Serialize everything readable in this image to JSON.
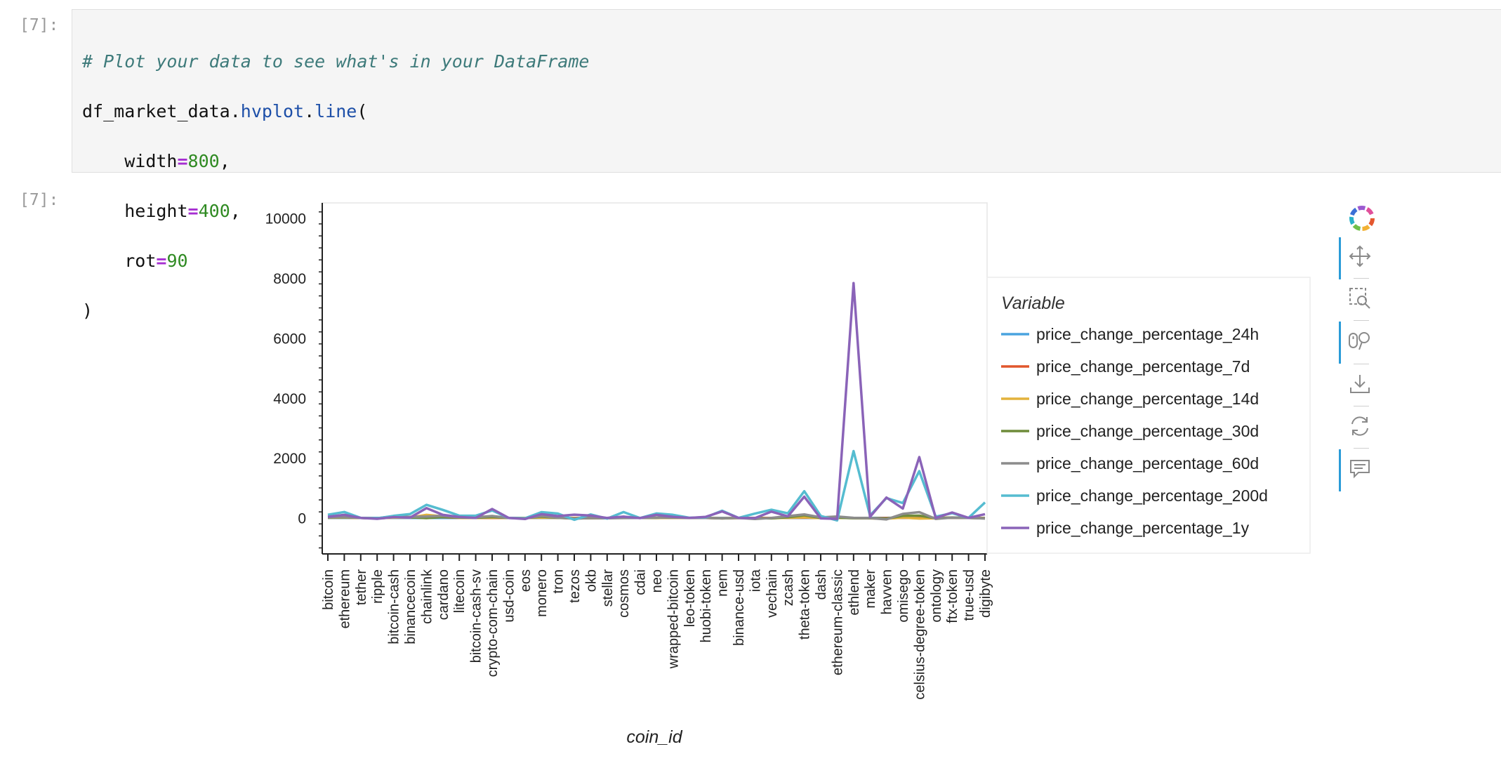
{
  "notebook": {
    "input_prompt": "[7]:",
    "output_prompt": "[7]:",
    "code": {
      "comment": "# Plot your data to see what's in your DataFrame",
      "object": "df_market_data.",
      "accessor": "hvplot",
      "dot": ".",
      "method": "line",
      "open_paren": "(",
      "arg1_name": "width",
      "arg1_value": "800",
      "arg2_name": "height",
      "arg2_value": "400",
      "arg3_name": "rot",
      "arg3_value": "90",
      "eq": "=",
      "comma": ",",
      "close_paren": ")"
    }
  },
  "toolbar": {
    "items": [
      {
        "name": "bokeh-logo-icon"
      },
      {
        "name": "pan-icon",
        "active": true
      },
      {
        "name": "box-zoom-icon",
        "active": false
      },
      {
        "name": "wheel-zoom-icon",
        "active": true
      },
      {
        "name": "save-icon",
        "active": false
      },
      {
        "name": "reset-icon",
        "active": false
      },
      {
        "name": "hover-icon",
        "active": true
      }
    ]
  },
  "chart_data": {
    "type": "line",
    "xlabel": "coin_id",
    "ylabel": "",
    "ylim": [
      -1200,
      10500
    ],
    "yticks": [
      0,
      2000,
      4000,
      6000,
      8000,
      10000
    ],
    "ytick_labels": [
      "0",
      "2000",
      "4000",
      "6000",
      "8000",
      "10000"
    ],
    "grid": false,
    "legend_title": "Variable",
    "legend_position": "right",
    "categories": [
      "bitcoin",
      "ethereum",
      "tether",
      "ripple",
      "bitcoin-cash",
      "binancecoin",
      "chainlink",
      "cardano",
      "litecoin",
      "bitcoin-cash-sv",
      "crypto-com-chain",
      "usd-coin",
      "eos",
      "monero",
      "tron",
      "tezos",
      "okb",
      "stellar",
      "cosmos",
      "cdai",
      "neo",
      "wrapped-bitcoin",
      "leo-token",
      "huobi-token",
      "nem",
      "binance-usd",
      "iota",
      "vechain",
      "zcash",
      "theta-token",
      "dash",
      "ethereum-classic",
      "ethlend",
      "maker",
      "havven",
      "omisego",
      "celsius-degree-token",
      "ontology",
      "ftx-token",
      "true-usd",
      "digibyte"
    ],
    "series": [
      {
        "name": "price_change_percentage_24h",
        "color": "#4aa3df",
        "values": [
          1,
          0,
          0,
          0,
          1,
          1,
          -1,
          0,
          0,
          1,
          1,
          0,
          0,
          1,
          0,
          0,
          1,
          0,
          0,
          0,
          1,
          1,
          0,
          0,
          1,
          0,
          0,
          1,
          0,
          -1,
          0,
          0,
          -3,
          -1,
          1,
          2,
          3,
          0,
          1,
          0,
          0
        ]
      },
      {
        "name": "price_change_percentage_7d",
        "color": "#e1562c",
        "values": [
          7,
          10,
          0,
          -17,
          14,
          11,
          38,
          24,
          3,
          3,
          1,
          0,
          -3,
          11,
          6,
          -4,
          -2,
          -2,
          8,
          0,
          1,
          7,
          0,
          2,
          -16,
          0,
          -3,
          -2,
          4,
          10,
          -3,
          2,
          -5,
          -11,
          -7,
          8,
          -8,
          -5,
          8,
          0,
          -7
        ]
      },
      {
        "name": "price_change_percentage_14d",
        "color": "#e3b23c",
        "values": [
          7,
          13,
          0,
          -15,
          10,
          7,
          102,
          51,
          3,
          2,
          11,
          0,
          0,
          13,
          4,
          -9,
          -11,
          -4,
          7,
          0,
          -4,
          7,
          -5,
          -1,
          -10,
          0,
          -8,
          -8,
          4,
          20,
          -6,
          -1,
          1,
          -15,
          -28,
          12,
          -21,
          -13,
          12,
          0,
          -9
        ]
      },
      {
        "name": "price_change_percentage_30d",
        "color": "#6f8c3a",
        "values": [
          15,
          18,
          0,
          -17,
          32,
          20,
          -7,
          28,
          12,
          4,
          28,
          0,
          -10,
          43,
          3,
          -20,
          -4,
          -7,
          10,
          0,
          4,
          16,
          0,
          2,
          -16,
          0,
          -7,
          -15,
          24,
          86,
          -3,
          10,
          -8,
          -10,
          -22,
          68,
          76,
          -10,
          14,
          0,
          -13
        ]
      },
      {
        "name": "price_change_percentage_60d",
        "color": "#8c8c8c",
        "values": [
          18,
          28,
          0,
          -10,
          52,
          36,
          45,
          68,
          20,
          20,
          64,
          0,
          -14,
          64,
          8,
          -25,
          -5,
          -11,
          -5,
          0,
          7,
          18,
          -3,
          -2,
          -8,
          0,
          -36,
          -2,
          60,
          118,
          16,
          44,
          2,
          -7,
          -50,
          134,
          193,
          -33,
          12,
          0,
          -20
        ]
      },
      {
        "name": "price_change_percentage_200d",
        "color": "#55bcd0",
        "values": [
          105,
          196,
          0,
          -14,
          69,
          126,
          435,
          267,
          75,
          74,
          246,
          0,
          -14,
          193,
          145,
          -62,
          116,
          -22,
          195,
          -4,
          149,
          104,
          5,
          20,
          239,
          0,
          143,
          272,
          153,
          890,
          66,
          -84,
          2227,
          81,
          663,
          493,
          1558,
          40,
          157,
          0,
          516
        ]
      },
      {
        "name": "price_change_percentage_1y",
        "color": "#8a63b8",
        "values": [
          38,
          101,
          0,
          -30,
          26,
          7,
          326,
          102,
          30,
          -2,
          298,
          0,
          -38,
          124,
          62,
          107,
          77,
          -3,
          43,
          -7,
          101,
          37,
          -2,
          35,
          216,
          0,
          -7,
          208,
          53,
          708,
          -16,
          -33,
          7828,
          33,
          680,
          312,
          2027,
          -3,
          180,
          0,
          125
        ]
      }
    ]
  }
}
